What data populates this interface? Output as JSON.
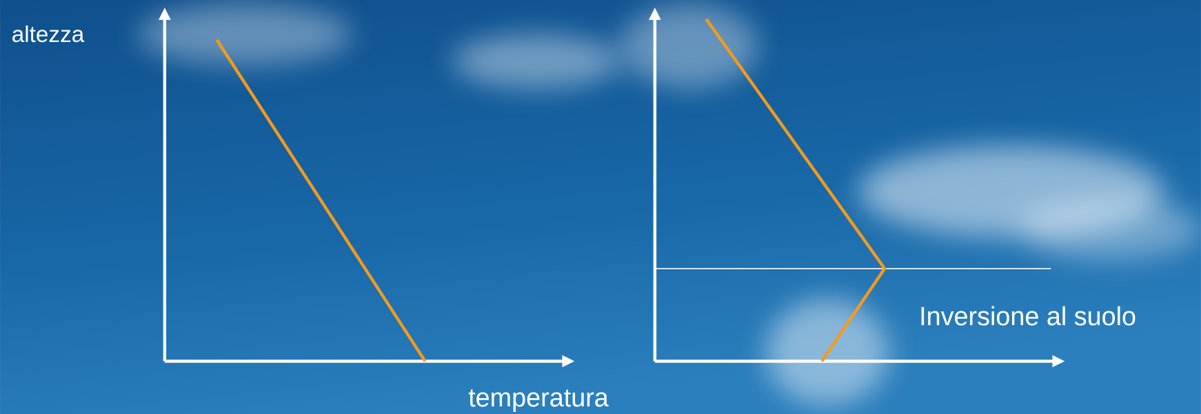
{
  "labels": {
    "y_axis": "altezza",
    "x_axis": "temperatura",
    "inversion": "Inversione al suolo"
  }
}
